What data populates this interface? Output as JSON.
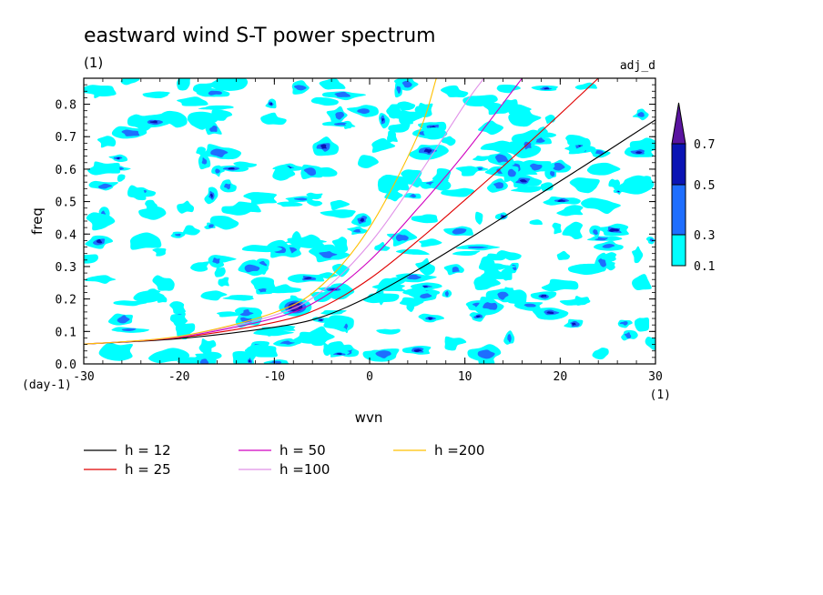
{
  "chart_data": {
    "type": "heatmap",
    "title": "eastward wind S-T power spectrum",
    "title_unit": "(1)",
    "subtitle_right": "adj_d",
    "xlabel": "wvn",
    "ylabel": "freq",
    "x_unit": "(1)",
    "y_unit": "(day-1)",
    "xlim": [
      -30,
      30
    ],
    "ylim": [
      0,
      0.88
    ],
    "x_ticks": [
      -30,
      -20,
      -10,
      0,
      10,
      20,
      30
    ],
    "y_ticks": [
      0.0,
      0.1,
      0.2,
      0.3,
      0.4,
      0.5,
      0.6,
      0.7,
      0.8
    ],
    "x_tick_labels": [
      "-30",
      "-20",
      "-10",
      "0",
      "10",
      "20",
      "30"
    ],
    "y_tick_labels": [
      "0.0",
      "0.1",
      "0.2",
      "0.3",
      "0.4",
      "0.5",
      "0.6",
      "0.7",
      "0.8"
    ],
    "colorbar": {
      "levels": [
        0.1,
        0.3,
        0.5,
        0.7
      ],
      "level_labels": [
        "0.1",
        "0.3",
        "0.5",
        "0.7"
      ],
      "colors": [
        "#00ffff",
        "#1e6eff",
        "#0a14b4",
        "#5a14a0"
      ]
    },
    "series": [
      {
        "name": "h = 12",
        "color": "#000000",
        "x": [
          -30,
          -20,
          -10,
          -5,
          0,
          5,
          10,
          15,
          20,
          25,
          30
        ],
        "y": [
          0.061,
          0.078,
          0.113,
          0.145,
          0.208,
          0.289,
          0.378,
          0.47,
          0.563,
          0.657,
          0.752
        ]
      },
      {
        "name": "h = 25",
        "color": "#e00000",
        "x": [
          -30,
          -20,
          -10,
          -5,
          0,
          5,
          10,
          15,
          20,
          24
        ],
        "y": [
          0.061,
          0.081,
          0.128,
          0.175,
          0.262,
          0.378,
          0.505,
          0.635,
          0.77,
          0.88
        ]
      },
      {
        "name": "h = 50",
        "color": "#d000c0",
        "x": [
          -30,
          -20,
          -10,
          -5,
          0,
          5,
          10,
          16
        ],
        "y": [
          0.061,
          0.083,
          0.141,
          0.203,
          0.318,
          0.477,
          0.65,
          0.88
        ]
      },
      {
        "name": "h =100",
        "color": "#e090e8",
        "x": [
          -30,
          -20,
          -10,
          -5,
          0,
          5,
          10,
          12
        ],
        "y": [
          0.061,
          0.084,
          0.15,
          0.224,
          0.37,
          0.575,
          0.8,
          0.88
        ]
      },
      {
        "name": "h =200",
        "color": "#ffc000",
        "x": [
          -30,
          -20,
          -10,
          -5,
          0,
          5,
          7
        ],
        "y": [
          0.061,
          0.085,
          0.158,
          0.243,
          0.42,
          0.7,
          0.88
        ]
      }
    ]
  }
}
